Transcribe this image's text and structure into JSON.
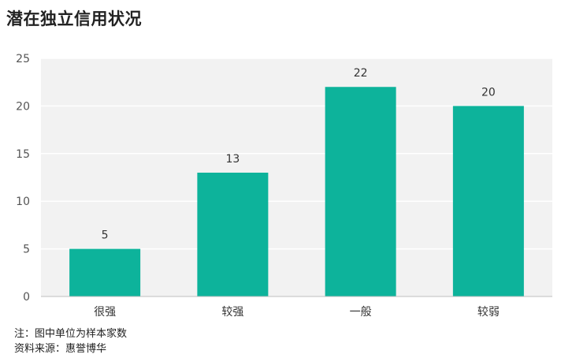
{
  "title": "潜在独立信用状况",
  "note": "注：图中单位为样本家数",
  "source": "资料来源：惠誉博华",
  "colors": {
    "bar": "#0db39b",
    "plot_bg": "#f2f2f2",
    "grid": "#ffffff",
    "axis": "#bfbfbf"
  },
  "chart_data": {
    "type": "bar",
    "title": "潜在独立信用状况",
    "categories": [
      "很强",
      "较强",
      "一般",
      "较弱"
    ],
    "values": [
      5,
      13,
      22,
      20
    ],
    "xlabel": "",
    "ylabel": "",
    "ylim": [
      0,
      25
    ],
    "yticks": [
      0,
      5,
      10,
      15,
      20,
      25
    ],
    "grid": true,
    "data_labels": true
  }
}
